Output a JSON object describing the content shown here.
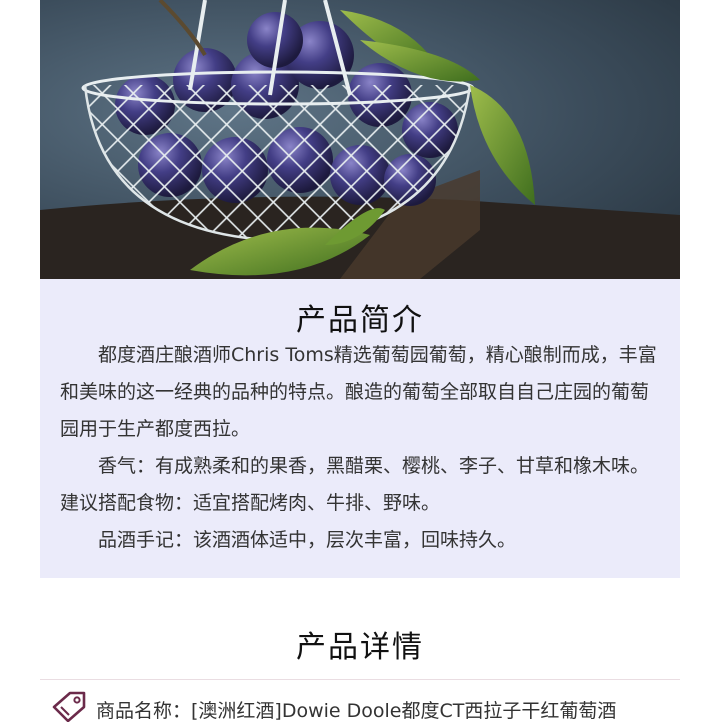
{
  "hero": {
    "image": "plums-in-wire-basket-photo"
  },
  "intro": {
    "title": "产品简介",
    "paragraphs": [
      "都度酒庄酿酒师Chris Toms精选葡萄园葡萄，精心酿制而成，丰富和美味的这一经典的品种的特点。酿造的葡萄全部取自自己庄园的葡萄园用于生产都度西拉。",
      "香气：有成熟柔和的果香，黑醋栗、樱桃、李子、甘草和橡木味。建议搭配食物：适宜搭配烤肉、牛排、野味。",
      "品酒手记：该酒酒体适中，层次丰富，回味持久。"
    ]
  },
  "details": {
    "title": "产品详情",
    "rows": [
      {
        "icon": "tag-icon",
        "text": "商品名称：[澳洲红酒]Dowie Doole都度CT西拉子干红葡萄酒"
      }
    ]
  },
  "colors": {
    "intro_bg": "#ebebfa",
    "icon": "#6b2a4a",
    "divider": "#eadde2"
  }
}
